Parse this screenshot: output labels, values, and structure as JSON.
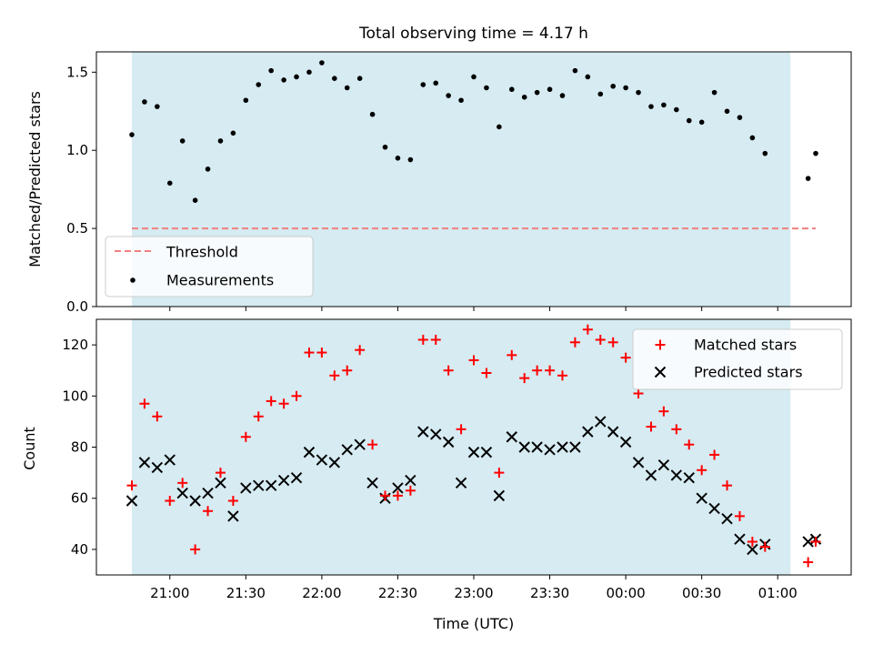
{
  "title": "Total observing time = 4.17 h",
  "colors": {
    "shade": "#add8e6",
    "threshold": "#f08080",
    "measurement": "#000000",
    "matched": "#ff0000",
    "predicted": "#000000"
  },
  "chart_data": [
    {
      "type": "scatter",
      "panel": "top",
      "title": "Total observing time = 4.17 h",
      "ylabel": "Matched/Predicted stars",
      "xlabel": "",
      "y_ticks": [
        0.0,
        0.5,
        1.0,
        1.5
      ],
      "y_tick_labels": [
        "0.0",
        "0.5",
        "1.0",
        "1.5"
      ],
      "ylim": [
        0,
        1.63
      ],
      "legend": [
        "Threshold",
        "Measurements"
      ],
      "legend_position": "lower-left",
      "shaded_span": [
        "20:45",
        "01:05"
      ],
      "threshold": {
        "name": "Threshold",
        "value": 0.5,
        "x": [
          "20:45",
          "01:15"
        ]
      },
      "series": [
        {
          "name": "Measurements",
          "x": [
            "20:45",
            "20:50",
            "20:55",
            "21:00",
            "21:05",
            "21:10",
            "21:15",
            "21:20",
            "21:25",
            "21:30",
            "21:35",
            "21:40",
            "21:45",
            "21:50",
            "21:55",
            "22:00",
            "22:05",
            "22:10",
            "22:15",
            "22:20",
            "22:25",
            "22:30",
            "22:35",
            "22:40",
            "22:45",
            "22:50",
            "22:55",
            "23:00",
            "23:05",
            "23:10",
            "23:15",
            "23:20",
            "23:25",
            "23:30",
            "23:35",
            "23:40",
            "23:45",
            "23:50",
            "23:55",
            "00:00",
            "00:05",
            "00:10",
            "00:15",
            "00:20",
            "00:25",
            "00:30",
            "00:35",
            "00:40",
            "00:45",
            "00:50",
            "00:55",
            "01:12",
            "01:15"
          ],
          "y": [
            1.1,
            1.31,
            1.28,
            0.79,
            1.06,
            0.68,
            0.88,
            1.06,
            1.11,
            1.32,
            1.42,
            1.51,
            1.45,
            1.47,
            1.5,
            1.56,
            1.46,
            1.4,
            1.46,
            1.23,
            1.02,
            0.95,
            0.94,
            1.42,
            1.43,
            1.35,
            1.32,
            1.47,
            1.4,
            1.15,
            1.39,
            1.34,
            1.37,
            1.39,
            1.35,
            1.51,
            1.47,
            1.36,
            1.41,
            1.4,
            1.37,
            1.28,
            1.29,
            1.26,
            1.19,
            1.18,
            1.37,
            1.25,
            1.21,
            1.08,
            0.98,
            0.82,
            0.98
          ]
        }
      ]
    },
    {
      "type": "scatter",
      "panel": "bottom",
      "xlabel": "Time (UTC)",
      "ylabel": "Count",
      "y_ticks": [
        40,
        60,
        80,
        100,
        120
      ],
      "y_tick_labels": [
        "40",
        "60",
        "80",
        "100",
        "120"
      ],
      "ylim": [
        30,
        130
      ],
      "x_ticks": [
        "21:00",
        "21:30",
        "22:00",
        "22:30",
        "23:00",
        "23:30",
        "00:00",
        "00:30",
        "01:00"
      ],
      "x_tick_labels": [
        "21:00",
        "21:30",
        "22:00",
        "22:30",
        "23:00",
        "23:30",
        "00:00",
        "00:30",
        "01:00"
      ],
      "xlim": [
        "20:31",
        "01:29"
      ],
      "legend": [
        "Matched stars",
        "Predicted stars"
      ],
      "legend_position": "upper-right",
      "shaded_span": [
        "20:45",
        "01:05"
      ],
      "series": [
        {
          "name": "Matched stars",
          "marker": "plus",
          "x": [
            "20:45",
            "20:50",
            "20:55",
            "21:00",
            "21:05",
            "21:10",
            "21:15",
            "21:20",
            "21:25",
            "21:30",
            "21:35",
            "21:40",
            "21:45",
            "21:50",
            "21:55",
            "22:00",
            "22:05",
            "22:10",
            "22:15",
            "22:20",
            "22:25",
            "22:30",
            "22:35",
            "22:40",
            "22:45",
            "22:50",
            "22:55",
            "23:00",
            "23:05",
            "23:10",
            "23:15",
            "23:20",
            "23:25",
            "23:30",
            "23:35",
            "23:40",
            "23:45",
            "23:50",
            "23:55",
            "00:00",
            "00:05",
            "00:10",
            "00:15",
            "00:20",
            "00:25",
            "00:30",
            "00:35",
            "00:40",
            "00:45",
            "00:50",
            "00:55",
            "01:12",
            "01:15"
          ],
          "y": [
            65,
            97,
            92,
            59,
            66,
            40,
            55,
            70,
            59,
            84,
            92,
            98,
            97,
            100,
            117,
            117,
            108,
            110,
            118,
            81,
            61,
            61,
            63,
            122,
            122,
            110,
            87,
            114,
            109,
            70,
            116,
            107,
            110,
            110,
            108,
            121,
            126,
            122,
            121,
            115,
            101,
            88,
            94,
            87,
            81,
            71,
            77,
            65,
            53,
            43,
            41,
            35,
            43
          ]
        },
        {
          "name": "Predicted stars",
          "marker": "x",
          "x": [
            "20:45",
            "20:50",
            "20:55",
            "21:00",
            "21:05",
            "21:10",
            "21:15",
            "21:20",
            "21:25",
            "21:30",
            "21:35",
            "21:40",
            "21:45",
            "21:50",
            "21:55",
            "22:00",
            "22:05",
            "22:10",
            "22:15",
            "22:20",
            "22:25",
            "22:30",
            "22:35",
            "22:40",
            "22:45",
            "22:50",
            "22:55",
            "23:00",
            "23:05",
            "23:10",
            "23:15",
            "23:20",
            "23:25",
            "23:30",
            "23:35",
            "23:40",
            "23:45",
            "23:50",
            "23:55",
            "00:00",
            "00:05",
            "00:10",
            "00:15",
            "00:20",
            "00:25",
            "00:30",
            "00:35",
            "00:40",
            "00:45",
            "00:50",
            "00:55",
            "01:12",
            "01:15"
          ],
          "y": [
            59,
            74,
            72,
            75,
            62,
            59,
            62,
            66,
            53,
            64,
            65,
            65,
            67,
            68,
            78,
            75,
            74,
            79,
            81,
            66,
            60,
            64,
            67,
            86,
            85,
            82,
            66,
            78,
            78,
            61,
            84,
            80,
            80,
            79,
            80,
            80,
            86,
            90,
            86,
            82,
            74,
            69,
            73,
            69,
            68,
            60,
            56,
            52,
            44,
            40,
            42,
            43,
            44
          ]
        }
      ]
    }
  ]
}
